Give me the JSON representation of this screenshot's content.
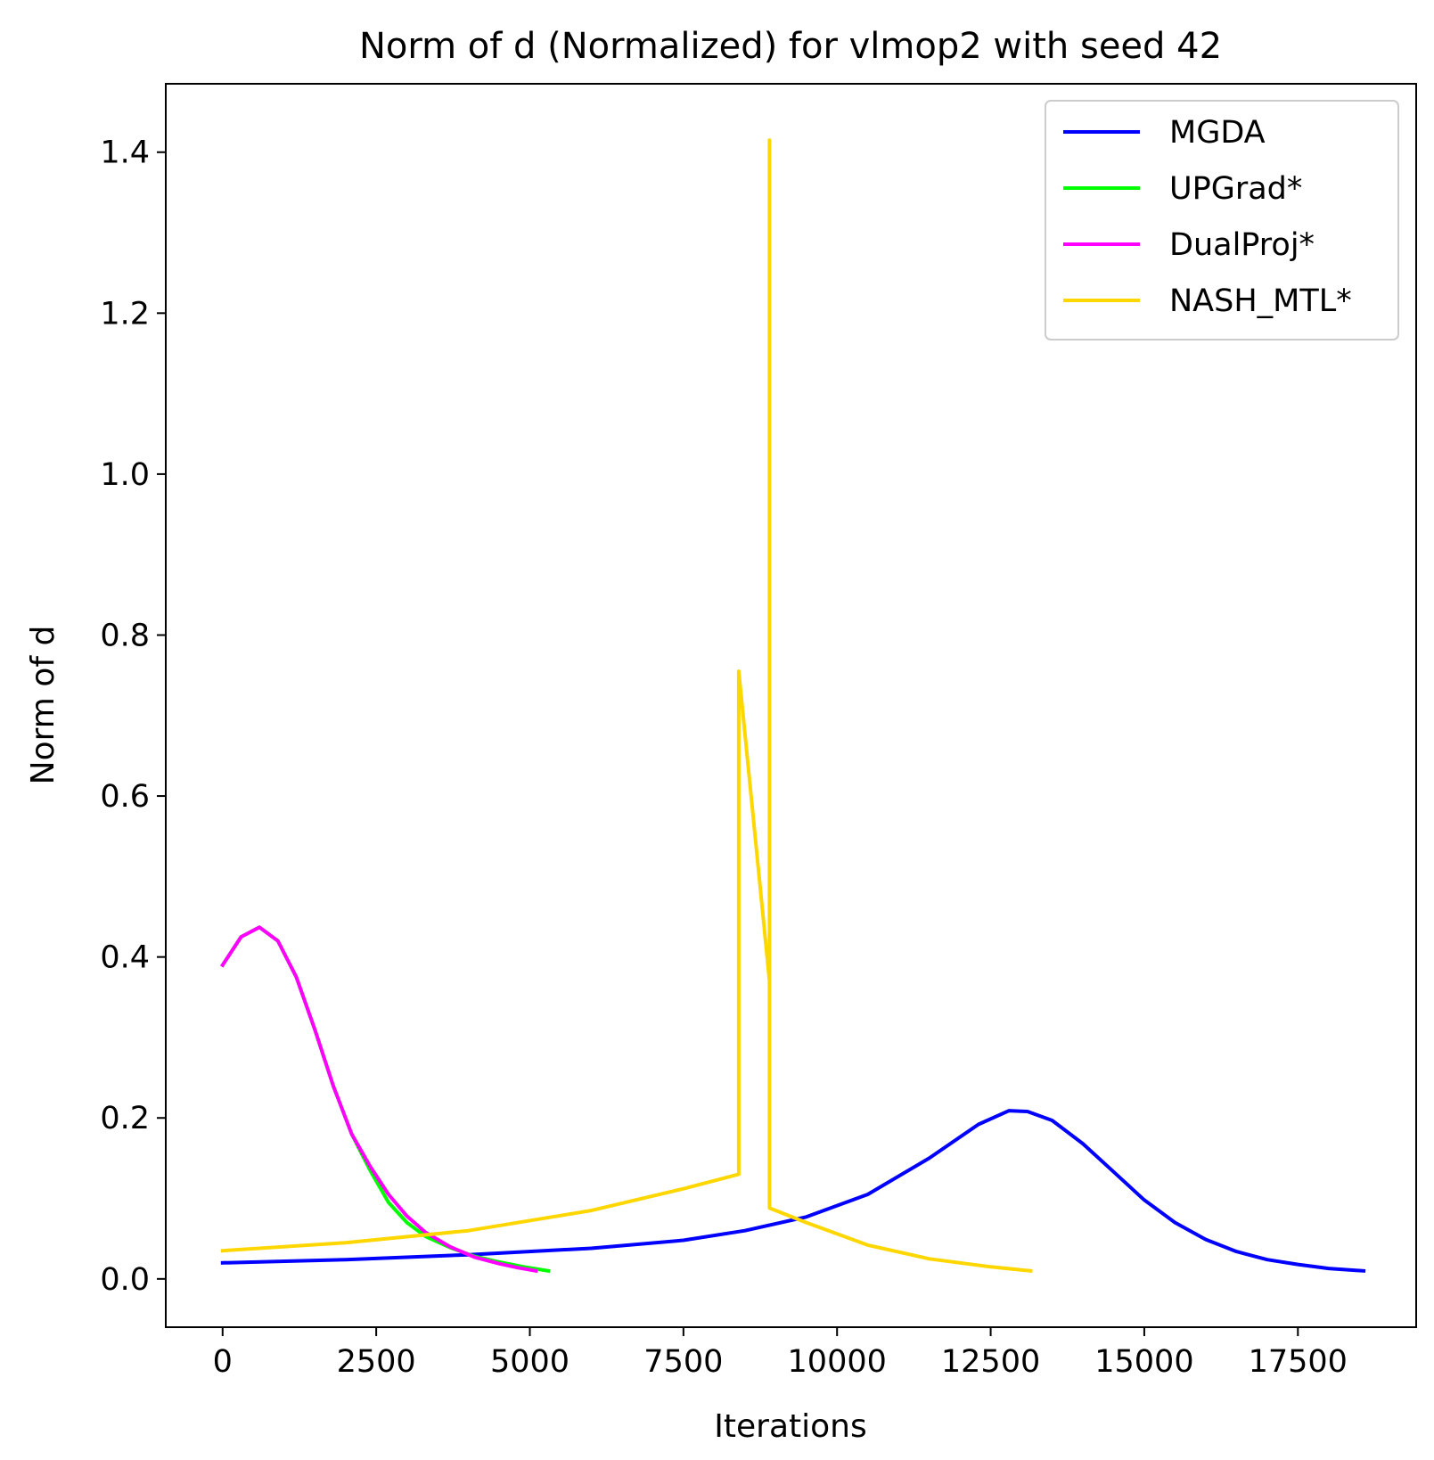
{
  "chart_data": {
    "type": "line",
    "title": "Norm of d (Normalized) for vlmop2 with seed 42",
    "xlabel": "Iterations",
    "ylabel": "Norm of d",
    "xlim": [
      -925,
      19425
    ],
    "ylim": [
      -0.06,
      1.485
    ],
    "xticks": [
      0,
      2500,
      5000,
      7500,
      10000,
      12500,
      15000,
      17500
    ],
    "xtick_labels": [
      "0",
      "2500",
      "5000",
      "7500",
      "10000",
      "12500",
      "15000",
      "17500"
    ],
    "yticks": [
      0.0,
      0.2,
      0.4,
      0.6,
      0.8,
      1.0,
      1.2,
      1.4
    ],
    "ytick_labels": [
      "0.0",
      "0.2",
      "0.4",
      "0.6",
      "0.8",
      "1.0",
      "1.2",
      "1.4"
    ],
    "grid": false,
    "legend_position": "upper right",
    "series": [
      {
        "name": "MGDA",
        "color": "#0000ff",
        "x": [
          0,
          2000,
          4000,
          6000,
          7500,
          8500,
          9500,
          10500,
          11500,
          12300,
          12800,
          13100,
          13500,
          14000,
          14500,
          15000,
          15500,
          16000,
          16500,
          17000,
          17500,
          18000,
          18570
        ],
        "y": [
          0.02,
          0.024,
          0.03,
          0.038,
          0.048,
          0.06,
          0.077,
          0.105,
          0.15,
          0.192,
          0.209,
          0.208,
          0.197,
          0.168,
          0.133,
          0.098,
          0.07,
          0.049,
          0.034,
          0.024,
          0.018,
          0.013,
          0.01
        ]
      },
      {
        "name": "UPGrad*",
        "color": "#00ff00",
        "x": [
          0,
          300,
          600,
          900,
          1200,
          1500,
          1800,
          2100,
          2400,
          2700,
          3000,
          3300,
          3700,
          4100,
          4500,
          4900,
          5300
        ],
        "y": [
          0.39,
          0.425,
          0.437,
          0.42,
          0.375,
          0.31,
          0.24,
          0.18,
          0.135,
          0.095,
          0.07,
          0.053,
          0.039,
          0.028,
          0.021,
          0.015,
          0.01
        ]
      },
      {
        "name": "DualProj*",
        "color": "#ff00ff",
        "x": [
          0,
          300,
          600,
          900,
          1200,
          1500,
          1800,
          2100,
          2400,
          2700,
          3000,
          3300,
          3700,
          4100,
          4500,
          4800,
          5100
        ],
        "y": [
          0.39,
          0.425,
          0.437,
          0.42,
          0.375,
          0.31,
          0.24,
          0.18,
          0.14,
          0.105,
          0.078,
          0.058,
          0.04,
          0.027,
          0.019,
          0.014,
          0.01
        ]
      },
      {
        "name": "NASH_MTL*",
        "color": "#ffd700",
        "x": [
          0,
          2000,
          4000,
          6000,
          7500,
          8400,
          8400,
          8900,
          8900,
          8900,
          9500,
          10500,
          11500,
          12500,
          13150
        ],
        "y": [
          0.035,
          0.045,
          0.06,
          0.085,
          0.112,
          0.13,
          0.755,
          0.37,
          1.415,
          0.088,
          0.07,
          0.042,
          0.025,
          0.015,
          0.01
        ]
      }
    ]
  }
}
